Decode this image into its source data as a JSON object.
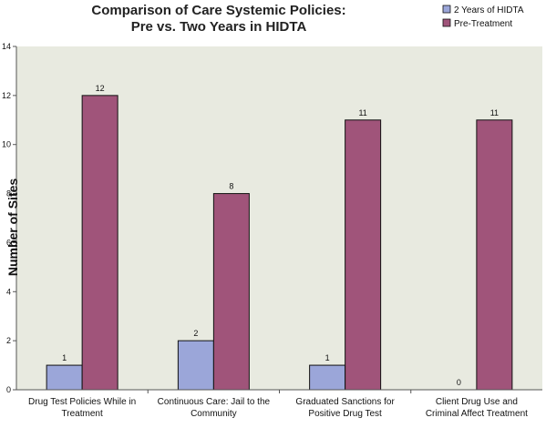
{
  "chart_data": {
    "type": "bar",
    "title_lines": [
      "Comparison of Care Systemic Policies:",
      "Pre vs. Two Years in HIDTA"
    ],
    "xlabel": "",
    "ylabel": "Number of Sites",
    "ylim": [
      0,
      14
    ],
    "yticks": [
      0,
      2,
      4,
      6,
      8,
      10,
      12,
      14
    ],
    "grid": false,
    "legend_position": "top-right",
    "categories": [
      [
        "Drug Test Policies While in",
        "Treatment"
      ],
      [
        "Continuous Care: Jail to the",
        "Community"
      ],
      [
        "Graduated Sanctions for",
        "Positive Drug Test"
      ],
      [
        "Client Drug Use and",
        "Criminal Affect Treatment"
      ]
    ],
    "series": [
      {
        "name": "2 Years of HIDTA",
        "color": "#9ba6d9",
        "values": [
          1,
          2,
          1,
          0
        ]
      },
      {
        "name": "Pre-Treatment",
        "color": "#a0547a",
        "values": [
          12,
          8,
          11,
          11
        ]
      }
    ],
    "plot_background": "#e8eae0"
  }
}
